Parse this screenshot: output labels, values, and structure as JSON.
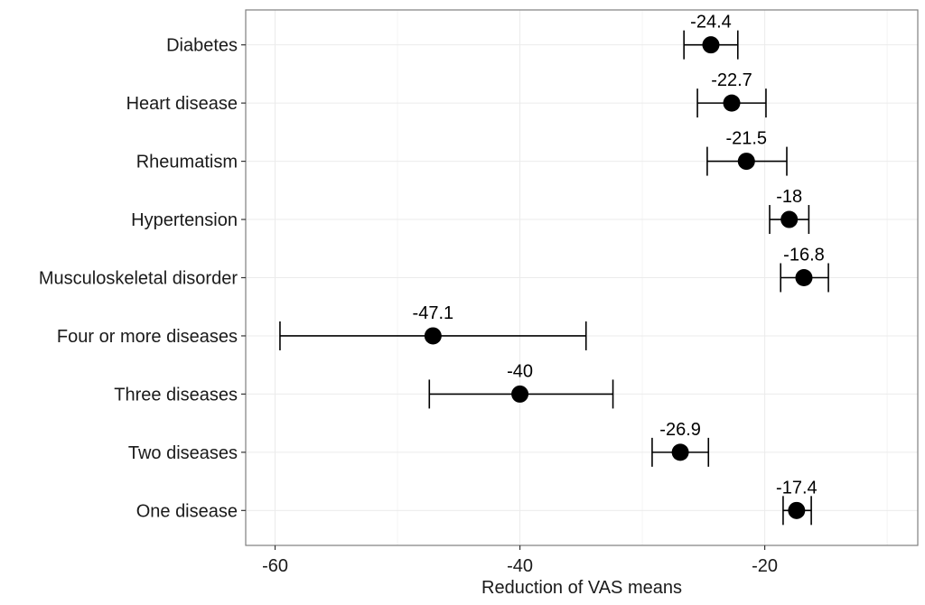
{
  "chart_data": {
    "type": "scatter",
    "subtype": "point-with-errorbars",
    "title": "",
    "xlabel": "Reduction of VAS means",
    "ylabel": "",
    "xlim": [
      -62.4,
      -7.5
    ],
    "x_ticks": [
      -60,
      -40,
      -20
    ],
    "x_tick_labels": [
      "-60",
      "-40",
      "-20"
    ],
    "x_minor_gridlines": [
      -50,
      -30,
      -10
    ],
    "grid": true,
    "legend": "none",
    "categories": [
      "Diabetes",
      "Heart disease",
      "Rheumatism",
      "Hypertension",
      "Musculoskeletal disorder",
      "Four or more diseases",
      "Three diseases",
      "Two diseases",
      "One disease"
    ],
    "values": [
      -24.4,
      -22.7,
      -21.5,
      -18,
      -16.8,
      -47.1,
      -40,
      -26.9,
      -17.4
    ],
    "value_labels": [
      "-24.4",
      "-22.7",
      "-21.5",
      "-18",
      "-16.8",
      "-47.1",
      "-40",
      "-26.9",
      "-17.4"
    ],
    "ci_lower": [
      -26.6,
      -25.5,
      -24.7,
      -19.6,
      -18.7,
      -59.6,
      -47.4,
      -29.2,
      -18.5
    ],
    "ci_upper": [
      -22.2,
      -19.9,
      -18.2,
      -16.4,
      -14.8,
      -34.6,
      -32.4,
      -24.6,
      -16.2
    ]
  },
  "colors": {
    "point": "#000000",
    "errorbar": "#000000",
    "grid": "#ebebeb",
    "panel_border": "#7f7f7f",
    "text": "#1a1a1a"
  }
}
